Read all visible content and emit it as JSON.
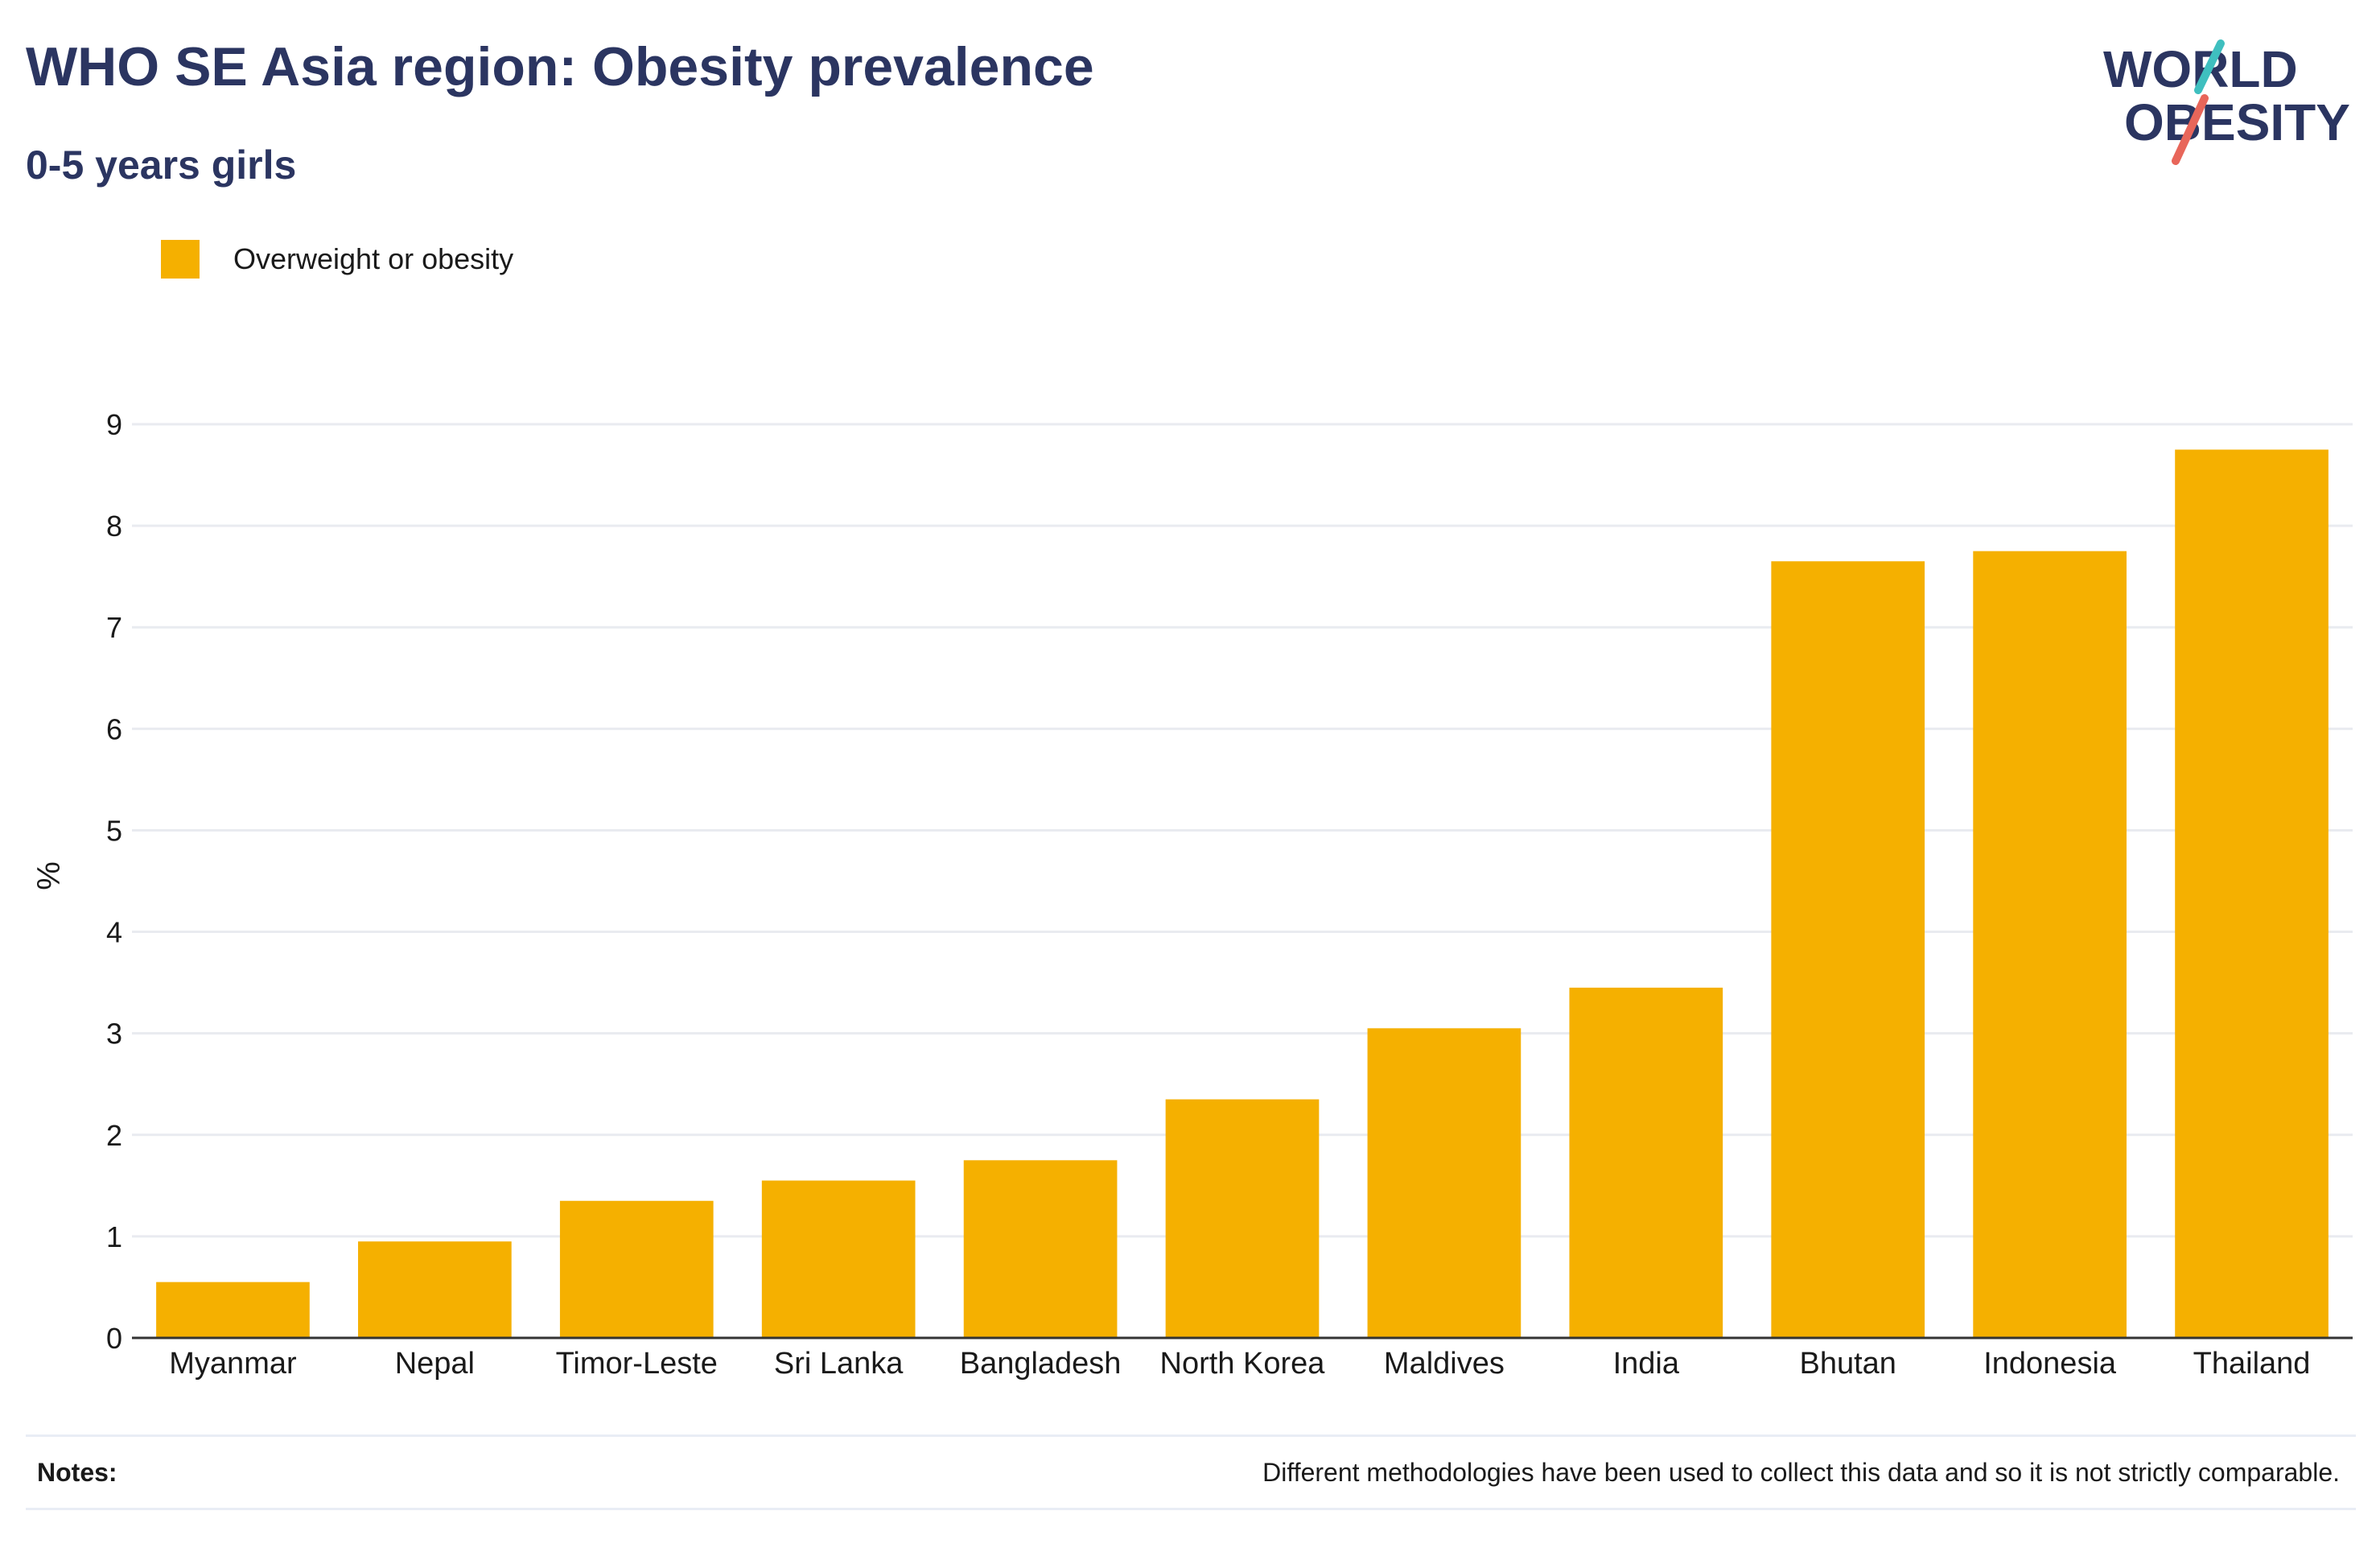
{
  "header": {
    "title": "WHO SE Asia region: Obesity prevalence",
    "subtitle": "0-5 years girls"
  },
  "logo": {
    "line1": "WORLD",
    "line2": "OBESITY",
    "text_color": "#2b3561",
    "accent_teal": "#3fbfbf",
    "accent_red": "#e8665a"
  },
  "legend": {
    "label": "Overweight or obesity",
    "color": "#f5b000"
  },
  "notes": {
    "label": "Notes:",
    "text": "Different methodologies have been used to collect this data and so it is not strictly comparable."
  },
  "chart_data": {
    "type": "bar",
    "title": "WHO SE Asia region: Obesity prevalence",
    "subtitle": "0-5 years girls",
    "xlabel": "",
    "ylabel": "%",
    "categories": [
      "Myanmar",
      "Nepal",
      "Timor-Leste",
      "Sri Lanka",
      "Bangladesh",
      "North Korea",
      "Maldives",
      "India",
      "Bhutan",
      "Indonesia",
      "Thailand"
    ],
    "series": [
      {
        "name": "Overweight or obesity",
        "color": "#f5b000",
        "values": [
          0.55,
          0.95,
          1.35,
          1.55,
          1.75,
          2.35,
          3.05,
          3.45,
          7.65,
          7.75,
          8.75
        ]
      }
    ],
    "ylim": [
      0,
      9
    ],
    "yticks": [
      0,
      1,
      2,
      3,
      4,
      5,
      6,
      7,
      8,
      9
    ],
    "grid": true,
    "legend_position": "top-left"
  }
}
